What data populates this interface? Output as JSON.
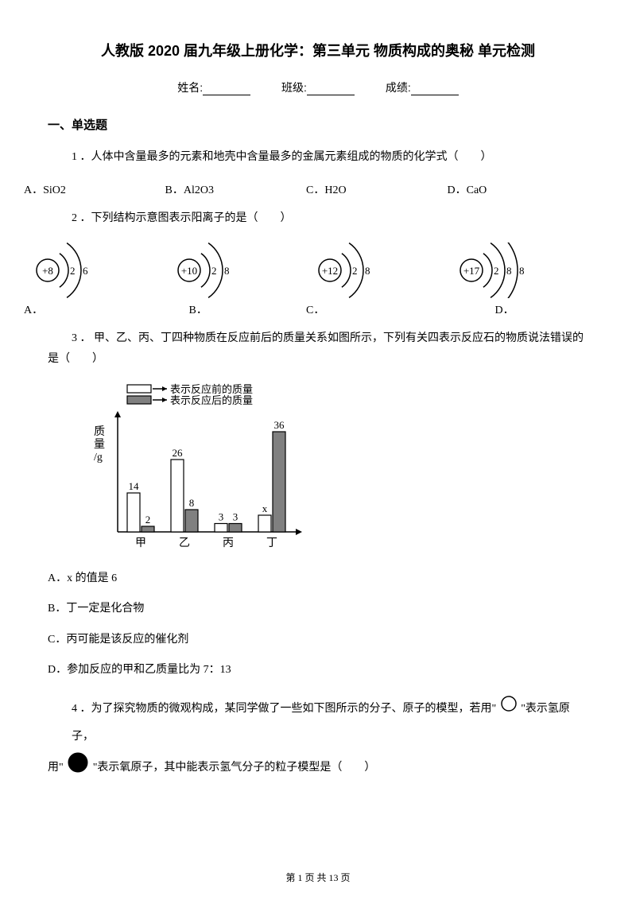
{
  "title": "人教版 2020 届九年级上册化学：第三单元 物质构成的奥秘 单元检测",
  "info": {
    "name_label": "姓名:",
    "class_label": "班级:",
    "score_label": "成绩:"
  },
  "section1_heading": "一、单选题",
  "q1": {
    "text": "1 ．人体中含量最多的元素和地壳中含量最多的金属元素组成的物质的化学式（　　）",
    "opts": {
      "A": "A．SiO2",
      "B": "B．Al2O3",
      "C": "C．H2O",
      "D": "D．CaO"
    }
  },
  "q2": {
    "text": "2 ．下列结构示意图表示阳离子的是（　　）",
    "atoms": {
      "A": {
        "nucleus": "+8",
        "shells": [
          "2",
          "6"
        ]
      },
      "B": {
        "nucleus": "+10",
        "shells": [
          "2",
          "8"
        ]
      },
      "C": {
        "nucleus": "+12",
        "shells": [
          "2",
          "8"
        ]
      },
      "D": {
        "nucleus": "+17",
        "shells": [
          "2",
          "8",
          "8"
        ]
      }
    },
    "labels": {
      "A": "A．",
      "B": "B．",
      "C": "C．",
      "D": "D．"
    }
  },
  "q3": {
    "text": "3 ． 甲、乙、丙、丁四种物质在反应前后的质量关系如图所示，下列有关四表示反应石的物质说法错误的是（　　）",
    "legend": {
      "before": "表示反应前的质量",
      "after": "表示反应后的质量"
    },
    "chart": {
      "ylabel_lines": [
        "质",
        "量",
        "/g"
      ],
      "categories": [
        "甲",
        "乙",
        "丙",
        "丁"
      ],
      "before_values": [
        14,
        26,
        3,
        "x"
      ],
      "after_values": [
        2,
        8,
        3,
        36
      ],
      "before_heights": [
        14,
        26,
        3,
        6
      ],
      "after_heights": [
        2,
        8,
        3,
        36
      ],
      "bar_before_fill": "#ffffff",
      "bar_after_fill": "#808080",
      "stroke": "#000000",
      "ymax": 40
    },
    "answers": {
      "A": "A．x 的值是 6",
      "B": "B．丁一定是化合物",
      "C": "C．丙可能是该反应的催化剂",
      "D": "D．参加反应的甲和乙质量比为 7：13"
    }
  },
  "q4": {
    "part1": "4 ．为了探究物质的微观构成，某同学做了一些如下图所示的分子、原子的模型，若用\"",
    "part2": "\"表示氢原子，",
    "part3": "用\"",
    "part4": "\"表示氧原子，其中能表示氢气分子的粒子模型是（　　）",
    "h_circle": {
      "r": 9,
      "fill": "#ffffff",
      "stroke": "#000000"
    },
    "o_circle": {
      "r": 12,
      "fill": "#000000",
      "stroke": "#000000"
    }
  },
  "footer": "第 1 页 共 13 页"
}
